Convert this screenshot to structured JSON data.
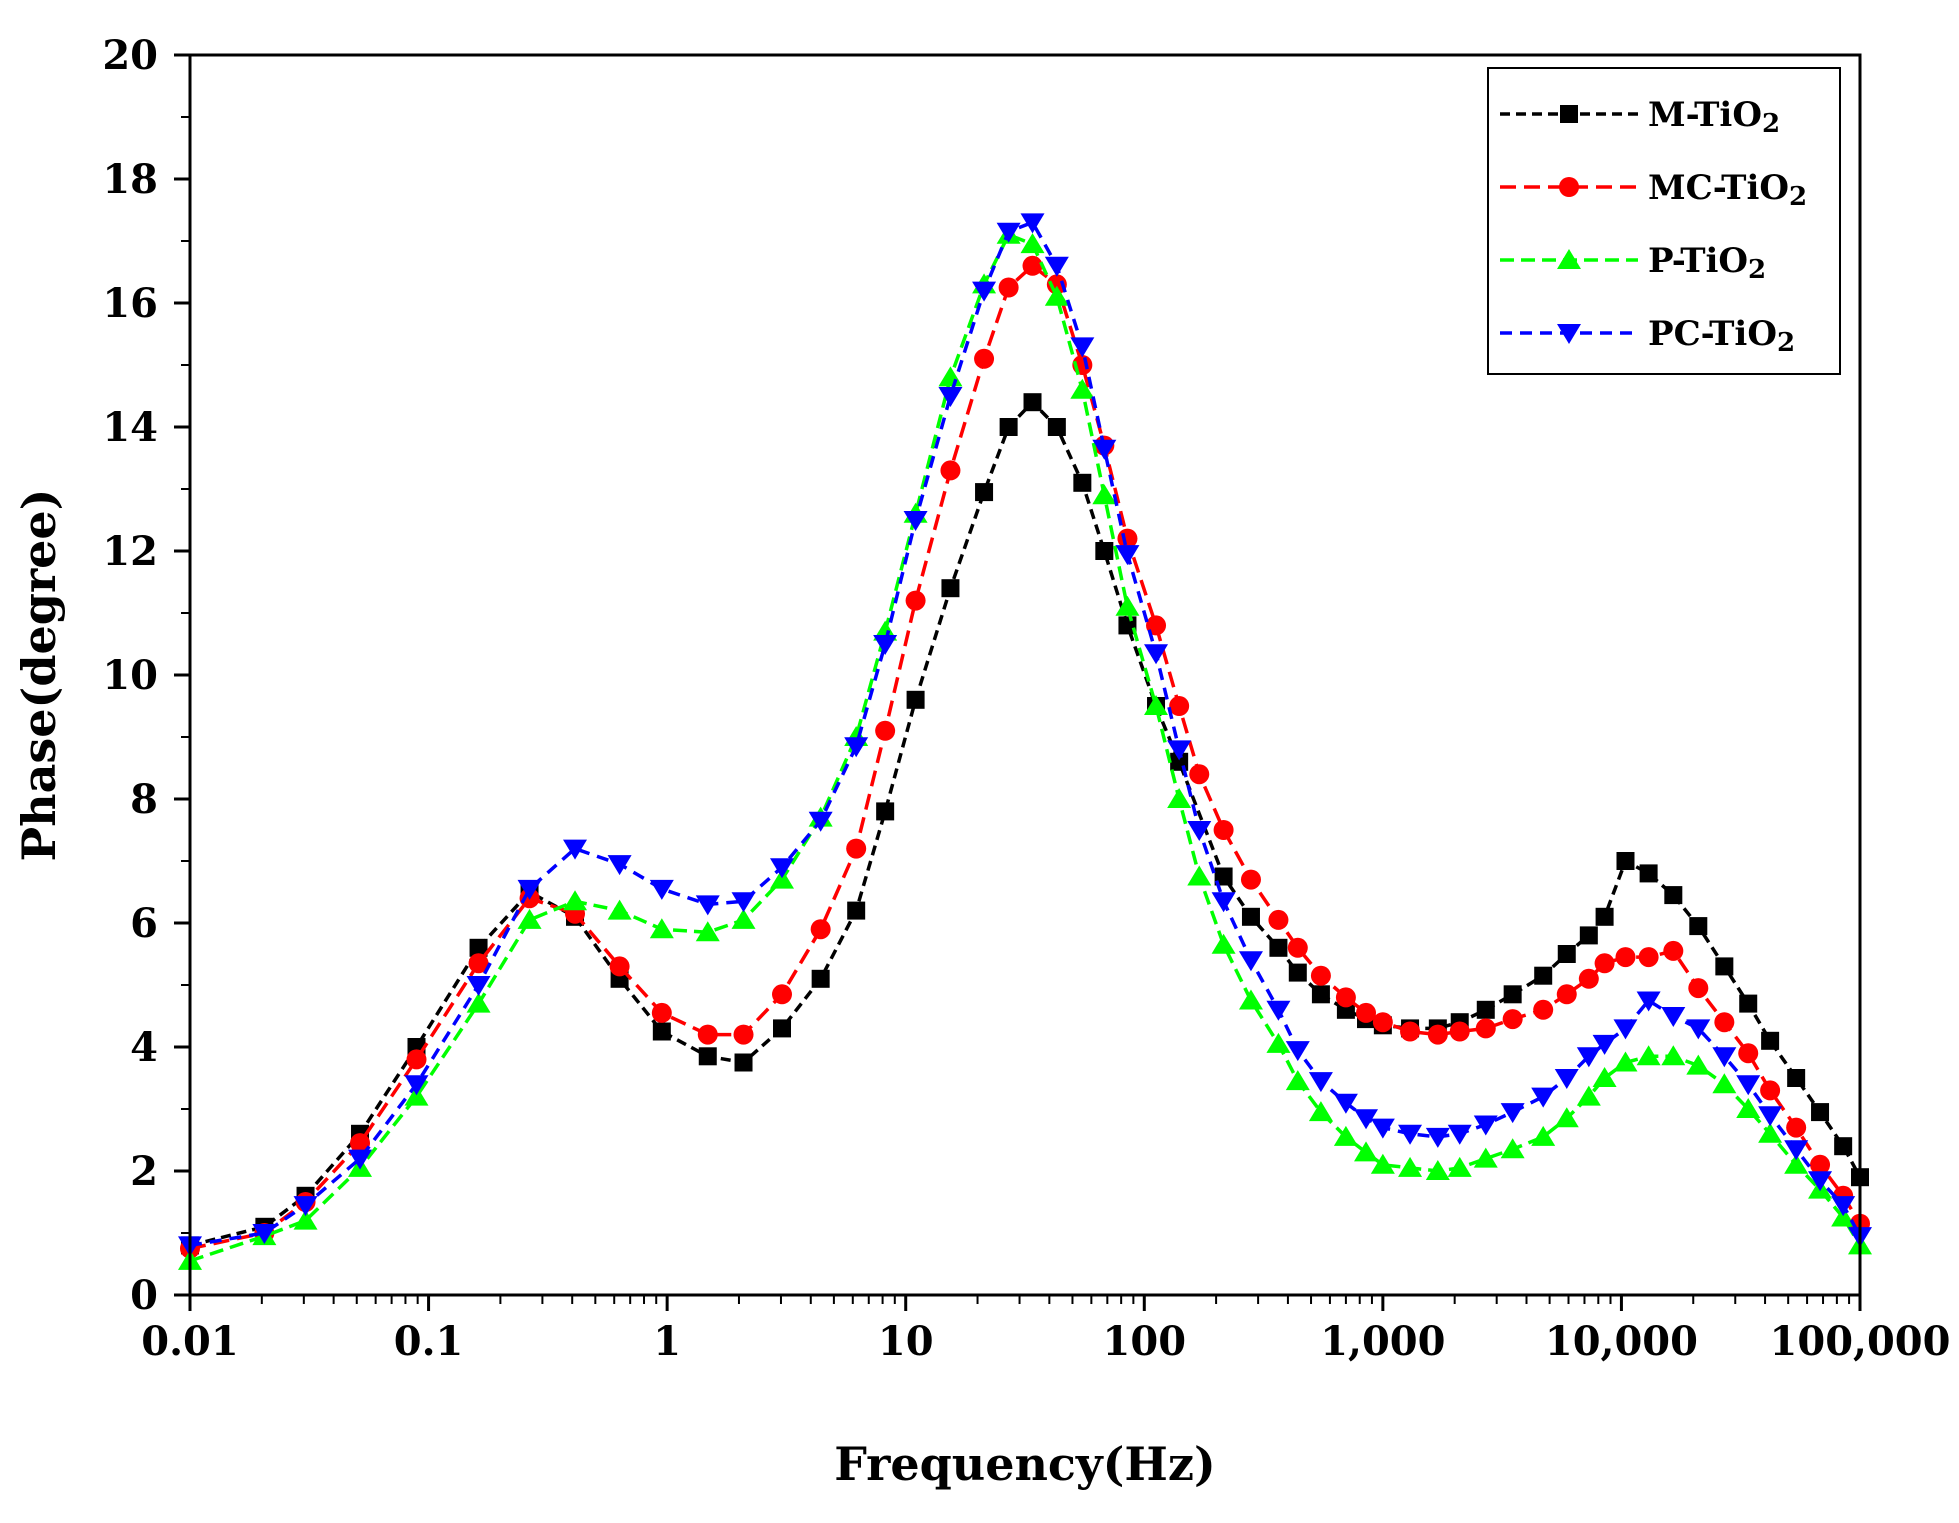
{
  "chart_data": {
    "type": "line",
    "title": "",
    "xlabel": "Frequency(Hz)",
    "ylabel": "Phase(degree)",
    "x_scale": "log",
    "xlim": [
      0.01,
      100000
    ],
    "ylim": [
      0,
      20
    ],
    "x_ticks": [
      0.01,
      0.1,
      1,
      10,
      100,
      1000,
      10000,
      100000
    ],
    "x_tick_labels": [
      "0.01",
      "0.1",
      "1",
      "10",
      "100",
      "1,000",
      "10,000",
      "100,000"
    ],
    "y_ticks": [
      0,
      2,
      4,
      6,
      8,
      10,
      12,
      14,
      16,
      18,
      20
    ],
    "y_tick_labels": [
      "0",
      "2",
      "4",
      "6",
      "8",
      "10",
      "12",
      "14",
      "16",
      "18",
      "20"
    ],
    "grid": false,
    "legend_position": "top-right",
    "series": [
      {
        "name": "M-TiO2",
        "name_base": "M-TiO",
        "name_sub": "2",
        "color": "#000000",
        "marker": "square",
        "dash": "10,6",
        "points": [
          [
            0.01,
            0.8
          ],
          [
            0.0205,
            1.1
          ],
          [
            0.0305,
            1.6
          ],
          [
            0.0516,
            2.6
          ],
          [
            0.089,
            4.0
          ],
          [
            0.162,
            5.6
          ],
          [
            0.265,
            6.5
          ],
          [
            0.411,
            6.1
          ],
          [
            0.632,
            5.1
          ],
          [
            0.95,
            4.25
          ],
          [
            1.48,
            3.85
          ],
          [
            2.09,
            3.75
          ],
          [
            3.03,
            4.3
          ],
          [
            4.4,
            5.1
          ],
          [
            6.2,
            6.2
          ],
          [
            8.2,
            7.8
          ],
          [
            11.0,
            9.6
          ],
          [
            15.4,
            11.4
          ],
          [
            21.3,
            12.95
          ],
          [
            27.0,
            14.0
          ],
          [
            34.0,
            14.4
          ],
          [
            43.0,
            14.0
          ],
          [
            55.0,
            13.1
          ],
          [
            68.0,
            12.0
          ],
          [
            85.0,
            10.8
          ],
          [
            112.0,
            9.5
          ],
          [
            140.0,
            8.6
          ],
          [
            215.0,
            6.75
          ],
          [
            280.0,
            6.1
          ],
          [
            365.0,
            5.6
          ],
          [
            440.0,
            5.2
          ],
          [
            550.0,
            4.85
          ],
          [
            700.0,
            4.6
          ],
          [
            850.0,
            4.45
          ],
          [
            1000.0,
            4.35
          ],
          [
            1300.0,
            4.3
          ],
          [
            1700.0,
            4.3
          ],
          [
            2100.0,
            4.4
          ],
          [
            2700.0,
            4.6
          ],
          [
            3500.0,
            4.85
          ],
          [
            4700.0,
            5.15
          ],
          [
            5900.0,
            5.5
          ],
          [
            7300.0,
            5.8
          ],
          [
            8500.0,
            6.1
          ],
          [
            10400.0,
            7.0
          ],
          [
            13000.0,
            6.8
          ],
          [
            16500.0,
            6.45
          ],
          [
            21000.0,
            5.95
          ],
          [
            27000.0,
            5.3
          ],
          [
            34000.0,
            4.7
          ],
          [
            42000.0,
            4.1
          ],
          [
            54000.0,
            3.5
          ],
          [
            68000.0,
            2.95
          ],
          [
            85000.0,
            2.4
          ],
          [
            100000.0,
            1.9
          ]
        ]
      },
      {
        "name": "MC-TiO2",
        "name_base": "MC-TiO",
        "name_sub": "2",
        "color": "#ff0000",
        "marker": "circle",
        "dash": "16,8",
        "points": [
          [
            0.01,
            0.75
          ],
          [
            0.0205,
            1.0
          ],
          [
            0.0305,
            1.5
          ],
          [
            0.0516,
            2.45
          ],
          [
            0.089,
            3.8
          ],
          [
            0.162,
            5.35
          ],
          [
            0.265,
            6.4
          ],
          [
            0.411,
            6.15
          ],
          [
            0.632,
            5.3
          ],
          [
            0.95,
            4.55
          ],
          [
            1.48,
            4.2
          ],
          [
            2.09,
            4.2
          ],
          [
            3.03,
            4.85
          ],
          [
            4.4,
            5.9
          ],
          [
            6.2,
            7.2
          ],
          [
            8.2,
            9.1
          ],
          [
            11.0,
            11.2
          ],
          [
            15.4,
            13.3
          ],
          [
            21.3,
            15.1
          ],
          [
            27.0,
            16.25
          ],
          [
            34.0,
            16.6
          ],
          [
            43.0,
            16.3
          ],
          [
            55.0,
            15.0
          ],
          [
            68.0,
            13.7
          ],
          [
            85.0,
            12.2
          ],
          [
            112.0,
            10.8
          ],
          [
            140.0,
            9.5
          ],
          [
            170.0,
            8.4
          ],
          [
            215.0,
            7.5
          ],
          [
            280.0,
            6.7
          ],
          [
            365.0,
            6.05
          ],
          [
            440.0,
            5.6
          ],
          [
            550.0,
            5.15
          ],
          [
            700.0,
            4.8
          ],
          [
            850.0,
            4.55
          ],
          [
            1000.0,
            4.4
          ],
          [
            1300.0,
            4.25
          ],
          [
            1700.0,
            4.2
          ],
          [
            2100.0,
            4.25
          ],
          [
            2700.0,
            4.3
          ],
          [
            3500.0,
            4.45
          ],
          [
            4700.0,
            4.6
          ],
          [
            5900.0,
            4.85
          ],
          [
            7300.0,
            5.1
          ],
          [
            8500.0,
            5.35
          ],
          [
            10400.0,
            5.45
          ],
          [
            13000.0,
            5.45
          ],
          [
            16500.0,
            5.55
          ],
          [
            21000.0,
            4.95
          ],
          [
            27000.0,
            4.4
          ],
          [
            34000.0,
            3.9
          ],
          [
            42000.0,
            3.3
          ],
          [
            54000.0,
            2.7
          ],
          [
            68000.0,
            2.1
          ],
          [
            85000.0,
            1.6
          ],
          [
            100000.0,
            1.15
          ]
        ]
      },
      {
        "name": "P-TiO2",
        "name_base": "P-TiO",
        "name_sub": "2",
        "color": "#00ff00",
        "marker": "triangle-up",
        "dash": "14,7",
        "points": [
          [
            0.01,
            0.55
          ],
          [
            0.0205,
            0.95
          ],
          [
            0.0305,
            1.2
          ],
          [
            0.0516,
            2.05
          ],
          [
            0.089,
            3.2
          ],
          [
            0.162,
            4.7
          ],
          [
            0.265,
            6.05
          ],
          [
            0.411,
            6.35
          ],
          [
            0.632,
            6.2
          ],
          [
            0.95,
            5.9
          ],
          [
            1.48,
            5.85
          ],
          [
            2.09,
            6.05
          ],
          [
            3.03,
            6.7
          ],
          [
            4.4,
            7.7
          ],
          [
            6.2,
            9.0
          ],
          [
            8.2,
            10.7
          ],
          [
            11.0,
            12.6
          ],
          [
            15.4,
            14.8
          ],
          [
            21.3,
            16.3
          ],
          [
            27.0,
            17.1
          ],
          [
            34.0,
            16.95
          ],
          [
            43.0,
            16.1
          ],
          [
            55.0,
            14.6
          ],
          [
            68.0,
            12.9
          ],
          [
            85.0,
            11.1
          ],
          [
            112.0,
            9.5
          ],
          [
            140.0,
            8.0
          ],
          [
            170.0,
            6.75
          ],
          [
            215.0,
            5.65
          ],
          [
            280.0,
            4.75
          ],
          [
            365.0,
            4.05
          ],
          [
            440.0,
            3.45
          ],
          [
            550.0,
            2.95
          ],
          [
            700.0,
            2.55
          ],
          [
            850.0,
            2.3
          ],
          [
            1000.0,
            2.1
          ],
          [
            1300.0,
            2.05
          ],
          [
            1700.0,
            2.0
          ],
          [
            2100.0,
            2.05
          ],
          [
            2700.0,
            2.2
          ],
          [
            3500.0,
            2.35
          ],
          [
            4700.0,
            2.55
          ],
          [
            5900.0,
            2.85
          ],
          [
            7300.0,
            3.2
          ],
          [
            8500.0,
            3.5
          ],
          [
            10400.0,
            3.75
          ],
          [
            13000.0,
            3.85
          ],
          [
            16500.0,
            3.85
          ],
          [
            21000.0,
            3.7
          ],
          [
            27000.0,
            3.4
          ],
          [
            34000.0,
            3.0
          ],
          [
            42000.0,
            2.6
          ],
          [
            54000.0,
            2.1
          ],
          [
            68000.0,
            1.7
          ],
          [
            85000.0,
            1.25
          ],
          [
            100000.0,
            0.8
          ]
        ]
      },
      {
        "name": "PC-TiO2",
        "name_base": "PC-TiO",
        "name_sub": "2",
        "color": "#0000ff",
        "marker": "triangle-down",
        "dash": "12,8",
        "points": [
          [
            0.01,
            0.8
          ],
          [
            0.0205,
            1.0
          ],
          [
            0.0305,
            1.45
          ],
          [
            0.0516,
            2.2
          ],
          [
            0.089,
            3.4
          ],
          [
            0.162,
            5.0
          ],
          [
            0.265,
            6.55
          ],
          [
            0.411,
            7.2
          ],
          [
            0.632,
            6.95
          ],
          [
            0.95,
            6.55
          ],
          [
            1.48,
            6.3
          ],
          [
            2.09,
            6.35
          ],
          [
            3.03,
            6.9
          ],
          [
            4.4,
            7.65
          ],
          [
            6.2,
            8.85
          ],
          [
            8.2,
            10.5
          ],
          [
            11.0,
            12.5
          ],
          [
            15.4,
            14.5
          ],
          [
            21.3,
            16.2
          ],
          [
            27.0,
            17.15
          ],
          [
            34.0,
            17.3
          ],
          [
            43.0,
            16.6
          ],
          [
            55.0,
            15.3
          ],
          [
            68.0,
            13.65
          ],
          [
            85.0,
            11.95
          ],
          [
            112.0,
            10.35
          ],
          [
            140.0,
            8.8
          ],
          [
            170.0,
            7.5
          ],
          [
            215.0,
            6.35
          ],
          [
            280.0,
            5.4
          ],
          [
            365.0,
            4.6
          ],
          [
            440.0,
            3.95
          ],
          [
            550.0,
            3.45
          ],
          [
            700.0,
            3.1
          ],
          [
            850.0,
            2.85
          ],
          [
            1000.0,
            2.7
          ],
          [
            1300.0,
            2.6
          ],
          [
            1700.0,
            2.55
          ],
          [
            2100.0,
            2.6
          ],
          [
            2700.0,
            2.75
          ],
          [
            3500.0,
            2.95
          ],
          [
            4700.0,
            3.2
          ],
          [
            5900.0,
            3.5
          ],
          [
            7300.0,
            3.85
          ],
          [
            8500.0,
            4.05
          ],
          [
            10400.0,
            4.3
          ],
          [
            13000.0,
            4.75
          ],
          [
            16500.0,
            4.5
          ],
          [
            21000.0,
            4.3
          ],
          [
            27000.0,
            3.85
          ],
          [
            34000.0,
            3.4
          ],
          [
            42000.0,
            2.9
          ],
          [
            54000.0,
            2.35
          ],
          [
            68000.0,
            1.85
          ],
          [
            85000.0,
            1.45
          ],
          [
            100000.0,
            0.95
          ]
        ]
      }
    ]
  }
}
